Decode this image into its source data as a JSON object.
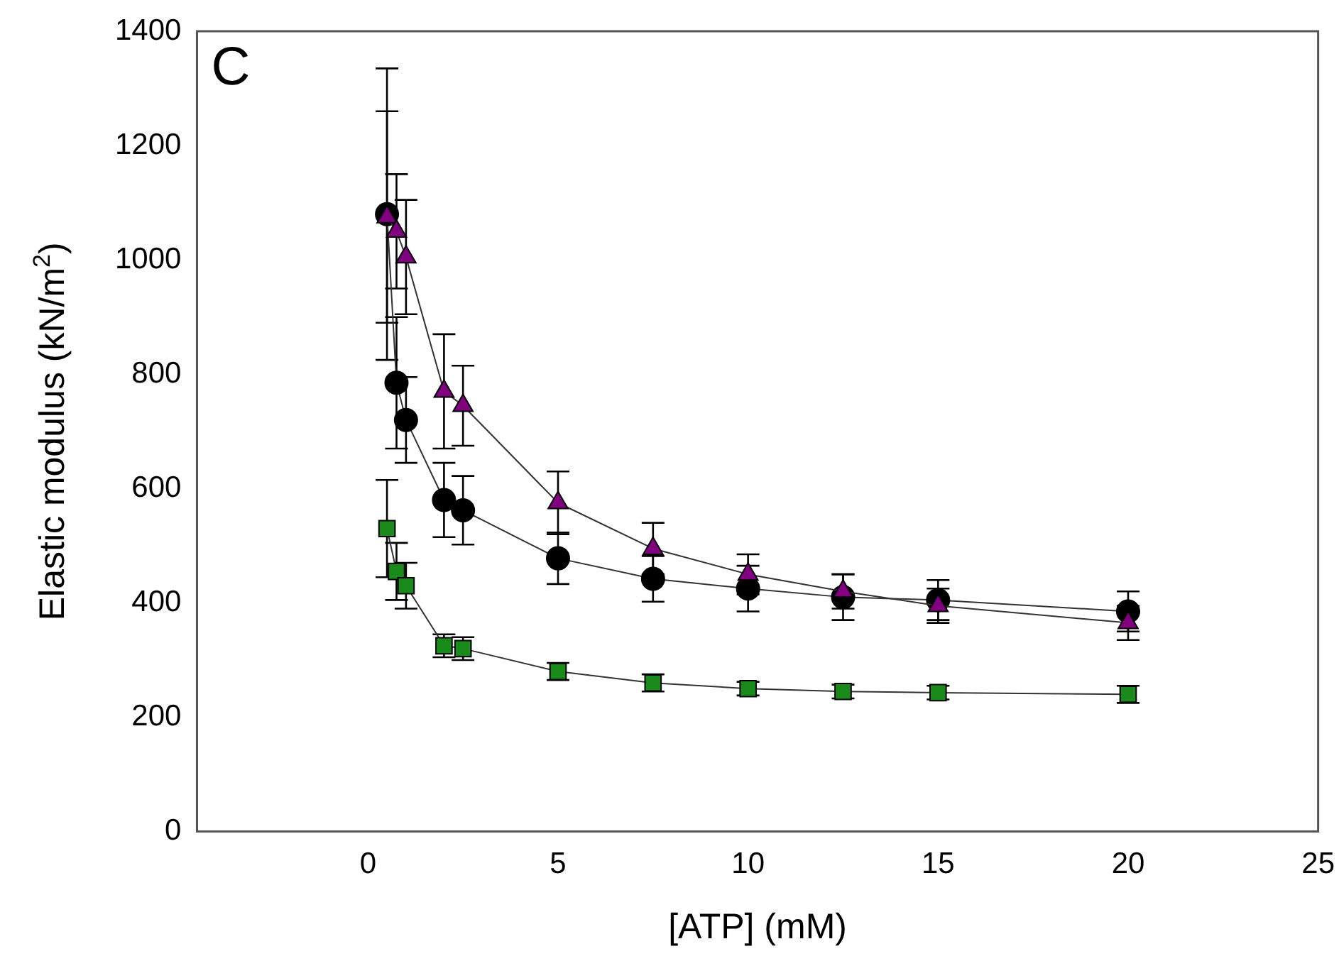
{
  "chart_data": {
    "type": "line",
    "xlabel": "[ATP] (mM)",
    "ylabel": "Elastic modulus (kN/m$^{2}$)",
    "annotations": [
      "C"
    ],
    "x": [
      0.5,
      0.75,
      1,
      2,
      2.5,
      5,
      7.5,
      10,
      12.5,
      15,
      20
    ],
    "xlim": [
      -4.5,
      25
    ],
    "xticks": [
      0,
      5,
      10,
      15,
      20,
      25
    ],
    "ylim": [
      0,
      1400
    ],
    "yticks": [
      0,
      200,
      400,
      600,
      800,
      1000,
      1200,
      1400
    ],
    "grid": false,
    "legend": false,
    "series": [
      {
        "color": "#000000",
        "marker": "circle",
        "values": [
          1080,
          785,
          720,
          580,
          562,
          478,
          442,
          425,
          410,
          405,
          385
        ],
        "errors": [
          255,
          115,
          75,
          65,
          60,
          45,
          40,
          40,
          40,
          35,
          35
        ]
      },
      {
        "color": "#800080",
        "marker": "triangle",
        "values": [
          1075,
          1050,
          1005,
          770,
          745,
          575,
          495,
          450,
          420,
          395,
          365
        ],
        "errors": [
          185,
          100,
          100,
          100,
          70,
          55,
          45,
          35,
          30,
          30,
          30
        ]
      },
      {
        "color": "#1a8a1a",
        "marker": "square",
        "values": [
          530,
          455,
          430,
          325,
          320,
          280,
          260,
          250,
          245,
          243,
          240
        ],
        "errors": [
          85,
          50,
          40,
          20,
          20,
          15,
          15,
          12,
          12,
          12,
          15
        ]
      }
    ]
  }
}
